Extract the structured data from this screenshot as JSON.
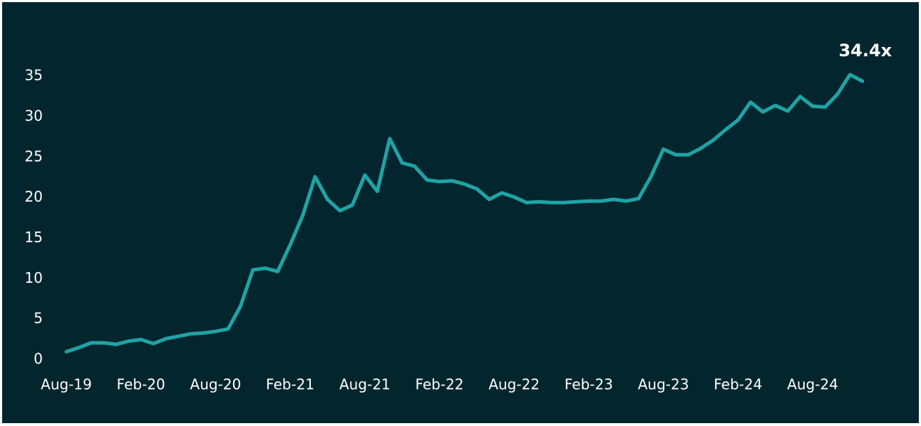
{
  "chart_data": {
    "type": "line",
    "categories": [
      "Aug-19",
      null,
      null,
      null,
      null,
      null,
      "Feb-20",
      null,
      null,
      null,
      null,
      null,
      "Aug-20",
      null,
      null,
      null,
      null,
      null,
      "Feb-21",
      null,
      null,
      null,
      null,
      null,
      "Aug-21",
      null,
      null,
      null,
      null,
      null,
      "Feb-22",
      null,
      null,
      null,
      null,
      null,
      "Aug-22",
      null,
      null,
      null,
      null,
      null,
      "Feb-23",
      null,
      null,
      null,
      null,
      null,
      "Aug-23",
      null,
      null,
      null,
      null,
      null,
      "Feb-24",
      null,
      null,
      null,
      null,
      null,
      "Aug-24",
      null,
      null,
      null,
      null
    ],
    "values": [
      1.0,
      1.5,
      2.1,
      2.1,
      1.9,
      2.3,
      2.5,
      2.0,
      2.6,
      2.9,
      3.2,
      3.3,
      3.5,
      3.8,
      6.6,
      11.1,
      11.3,
      10.9,
      14.2,
      17.8,
      22.6,
      19.8,
      18.4,
      19.1,
      22.8,
      20.8,
      27.3,
      24.3,
      23.9,
      22.2,
      22.0,
      22.1,
      21.7,
      21.1,
      19.8,
      20.6,
      20.1,
      19.4,
      19.5,
      19.4,
      19.4,
      19.5,
      19.6,
      19.6,
      19.8,
      19.6,
      19.9,
      22.6,
      26.0,
      25.3,
      25.3,
      26.1,
      27.1,
      28.4,
      29.6,
      31.8,
      30.6,
      31.4,
      30.7,
      32.5,
      31.3,
      31.2,
      32.8,
      35.2,
      34.4
    ],
    "value_labels": [
      null,
      null,
      null,
      null,
      null,
      null,
      null,
      null,
      null,
      null,
      null,
      null,
      null,
      null,
      null,
      null,
      null,
      null,
      null,
      null,
      null,
      null,
      null,
      null,
      null,
      null,
      null,
      null,
      null,
      null,
      null,
      null,
      null,
      null,
      null,
      null,
      null,
      null,
      null,
      null,
      null,
      null,
      null,
      null,
      null,
      null,
      null,
      null,
      null,
      null,
      null,
      null,
      null,
      null,
      null,
      null,
      null,
      null,
      null,
      null,
      null,
      null,
      null,
      null,
      "34.4x"
    ],
    "color": "#1fa3a6",
    "ylim": [
      -1,
      40
    ],
    "yticks": [
      0,
      5,
      10,
      15,
      20,
      25,
      30,
      35
    ],
    "grid": false
  }
}
